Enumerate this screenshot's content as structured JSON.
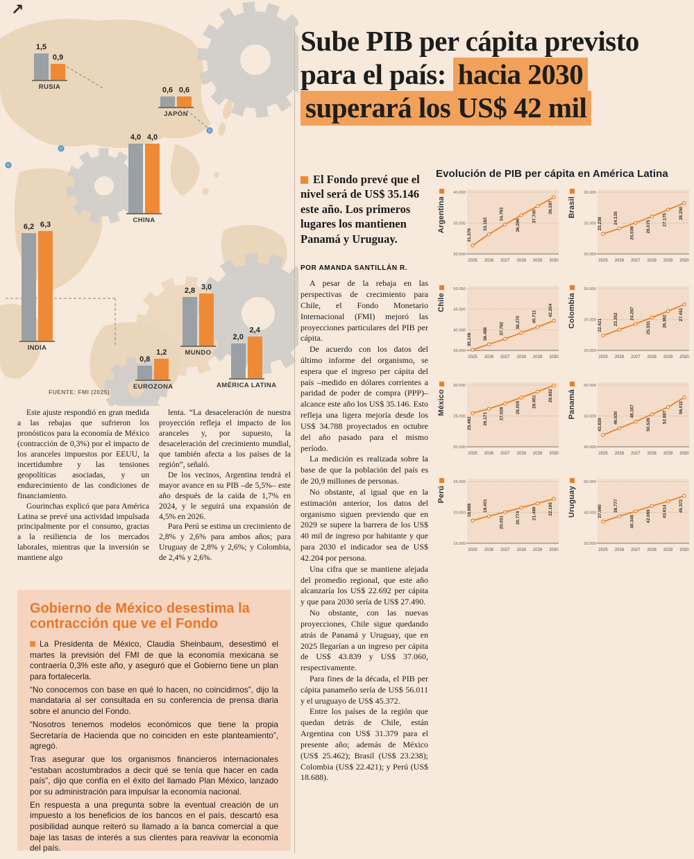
{
  "icons": {
    "corner_arrow": "↗"
  },
  "colors": {
    "accent_orange": "#ee8a35",
    "bar_gray": "#9aa0a4",
    "headline_highlight": "#f1a159",
    "line_orange": "#e8802a",
    "box_background": "#f6d5c0",
    "page_background": "#f7e9db"
  },
  "headline": {
    "plain": "Sube PIB per cápita previsto para el país: ",
    "highlight": "hacia 2030 superará los US$ 42 mil"
  },
  "intro": "El Fondo prevé que el nivel será de US$ 35.146 este año. Los primeros lugares los mantienen Panamá y Uruguay.",
  "byline": "POR AMANDA SANTILLÁN R.",
  "chart_data": [
    {
      "id": "world-growth-bars",
      "type": "bar",
      "source": "FUENTE: FMI (2025)",
      "series_colors": [
        "#9aa0a4",
        "#ee8a35"
      ],
      "groups": [
        {
          "label": "RUSIA",
          "display": [
            "1,5",
            "0,9"
          ],
          "values": [
            1.5,
            0.9
          ]
        },
        {
          "label": "JAPÓN",
          "display": [
            "0,6",
            "0,6"
          ],
          "values": [
            0.6,
            0.6
          ]
        },
        {
          "label": "CHINA",
          "display": [
            "4,0",
            "4,0"
          ],
          "values": [
            4.0,
            4.0
          ]
        },
        {
          "label": "INDIA",
          "display": [
            "6,2",
            "6,3"
          ],
          "values": [
            6.2,
            6.3
          ]
        },
        {
          "label": "MUNDO",
          "display": [
            "2,8",
            "3,0"
          ],
          "values": [
            2.8,
            3.0
          ]
        },
        {
          "label": "EUROZONA",
          "display": [
            "0,8",
            "1,2"
          ],
          "values": [
            0.8,
            1.2
          ]
        },
        {
          "label": "AMÉRICA LATINA",
          "display": [
            "2,0",
            "2,4"
          ],
          "values": [
            2.0,
            2.4
          ]
        }
      ]
    },
    {
      "id": "pib-per-capita-lines",
      "type": "line",
      "title": "Evolución de PIB per cápita en América Latina",
      "x": [
        "2025",
        "2026",
        "2027",
        "2028",
        "2029",
        "2030"
      ],
      "charts": [
        {
          "country": "Argentina",
          "ylim": [
            30000,
            40000
          ],
          "yticks": [
            "40.000",
            "35.000",
            "30.000"
          ],
          "values": [
            31379,
            33182,
            34783,
            36296,
            37740,
            39197
          ],
          "labels": [
            "31.379",
            "33.182",
            "34.783",
            "36.296",
            "37.740",
            "39.197"
          ]
        },
        {
          "country": "Brasil",
          "ylim": [
            20000,
            30000
          ],
          "yticks": [
            "30.000",
            "25.000",
            "20.000"
          ],
          "values": [
            23238,
            24135,
            25039,
            26075,
            27175,
            28250
          ],
          "labels": [
            "23.238",
            "24.135",
            "25.039",
            "26.075",
            "27.175",
            "28.250"
          ]
        },
        {
          "country": "Chile",
          "ylim": [
            35000,
            50000
          ],
          "yticks": [
            "50.000",
            "45.000",
            "40.000",
            "35.000"
          ],
          "values": [
            35146,
            36488,
            37792,
            39270,
            40711,
            42204
          ],
          "labels": [
            "35.146",
            "36.488",
            "37.792",
            "39.270",
            "40.711",
            "42.204"
          ]
        },
        {
          "country": "Colombia",
          "ylim": [
            20000,
            30000
          ],
          "yticks": [
            "30.000",
            "25.000",
            "20.000"
          ],
          "values": [
            22421,
            23352,
            24287,
            25331,
            26362,
            27451
          ],
          "labels": [
            "22.421",
            "23.352",
            "24.287",
            "25.331",
            "26.362",
            "27.451"
          ]
        },
        {
          "country": "México",
          "ylim": [
            20000,
            30000
          ],
          "yticks": [
            "30.000",
            "25.000",
            "20.000"
          ],
          "values": [
            25462,
            26171,
            27026,
            28005,
            28951,
            29932
          ],
          "labels": [
            "25.462",
            "26.171",
            "27.026",
            "28.005",
            "28.951",
            "29.932"
          ]
        },
        {
          "country": "Panamá",
          "ylim": [
            40000,
            60000
          ],
          "yticks": [
            "60.000",
            "50.000",
            "40.000"
          ],
          "values": [
            43839,
            46030,
            48167,
            50526,
            52887,
            56011
          ],
          "labels": [
            "43.839",
            "46.030",
            "48.167",
            "50.526",
            "52.887",
            "56.011"
          ]
        },
        {
          "country": "Perú",
          "ylim": [
            15000,
            25000
          ],
          "yticks": [
            "25.000",
            "20.000",
            "15.000"
          ],
          "values": [
            18688,
            19401,
            20051,
            20774,
            21469,
            22195
          ],
          "labels": [
            "18.688",
            "19.401",
            "20.051",
            "20.774",
            "21.469",
            "22.195"
          ]
        },
        {
          "country": "Uruguay",
          "ylim": [
            30000,
            50000
          ],
          "yticks": [
            "50.000",
            "40.000",
            "30.000"
          ],
          "values": [
            37060,
            38777,
            40345,
            42069,
            43614,
            45372
          ],
          "labels": [
            "37.060",
            "38.777",
            "40.345",
            "42.069",
            "43.614",
            "45.372"
          ]
        }
      ]
    }
  ],
  "left_column_1": [
    "Este ajuste respondió en gran medida a las rebajas que sufrieron los pronósticos para la economía de México (contracción de 0,3%) por el impacto de los aranceles impuestos por EEUU, la incertidumbre y las tensiones geopolíticas asociadas, y un endurecimiento de las condiciones de financiamiento.",
    "Gourinchas explicó que para América Latina se prevé una actividad impulsada principalmente por el consumo, gracias a la resiliencia de los mercados laborales, mientras que la inversión se mantiene algo"
  ],
  "left_column_2": [
    "lenta. “La desaceleración de nuestra proyección refleja el impacto de los aranceles y, por supuesto, la desaceleración del crecimiento mundial, que también afecta a los países de la región”, señaló.",
    "De los vecinos, Argentina tendrá el mayor avance en su PIB –de 5,5%– este año después de la caída de 1,7% en 2024, y le seguirá una expansión de 4,5% en 2026.",
    "Para Perú se estima un crecimiento de 2,8% y 2,6% para ambos años; para Uruguay de 2,8% y 2,6%; y Colombia, de 2,4% y 2,6%."
  ],
  "main_column": [
    "A pesar de la rebaja en las perspectivas de crecimiento para Chile, el Fondo Monetario Internacional (FMI) mejoró las proyecciones particulares del PIB per cápita.",
    "De acuerdo con los datos del último informe del organismo, se espera que el ingreso per cápita del país –medido en dólares corrientes a paridad de poder de compra (PPP)– alcance este año los US$ 35.146. Esto refleja una ligera mejoría desde los US$ 34.788 proyectados en octubre del año pasado para el mismo período.",
    "La medición es realizada sobre la base de que la población del país es de 20,9 millones de personas.",
    "No obstante, al igual que en la estimación anterior, los datos del organismo siguen previendo que en 2029 se supere la barrera de los US$ 40 mil de ingreso por habitante y que para 2030 el indicador sea de US$ 42.204 por persona.",
    "Una cifra que se mantiene alejada del promedio regional, que este año alcanzaría los US$ 22.692 per cápita y que para 2030 sería de US$ 27.490.",
    "No obstante, con las nuevas proyecciones, Chile sigue quedando atrás de Panamá y Uruguay, que en 2025 llegarían a un ingreso per cápita de US$ 43.839 y US$ 37.060, respectivamente.",
    "Para fines de la década, el PIB per cápita panameño sería de US$ 56.011 y el uruguayo de US$ 45.372.",
    "Entre los países de la región que quedan detrás de Chile, están Argentina con US$ 31.379 para el presente año; además de México (US$ 25.462); Brasil (US$ 23.238); Colombia (US$ 22.421); y Perú (US$ 18.688)."
  ],
  "mexico_box": {
    "title": "Gobierno de México desestima la contracción que ve el Fondo",
    "paragraphs": [
      "La Presidenta de México, Claudia Sheinbaum, desestimó el martes la previsión del FMI de que la economía mexicana se contraería 0,3% este año, y aseguró que el Gobierno tiene un plan para fortalecerla.",
      "“No conocemos con base en qué lo hacen, no coincidimos”, dijo la mandataria al ser consultada en su conferencia de prensa diaria sobre el anuncio del Fondo.",
      "“Nosotros tenemos modelos económicos que tiene la propia Secretaría de Hacienda que no coinciden en este planteamiento”, agregó.",
      "Tras asegurar que los organismos financieros internacionales “estaban acostumbrados a decir qué se tenía que hacer en cada país”, dijo que confía en el éxito del llamado Plan México, lanzado por su administración para impulsar la economía nacional.",
      "En respuesta a una pregunta sobre la eventual creación de un impuesto a los beneficios de los bancos en el país, descartó esa posibilidad aunque reiteró su llamado a la banca comercial a que baje las tasas de interés a sus clientes para reavivar la economía del país."
    ]
  }
}
